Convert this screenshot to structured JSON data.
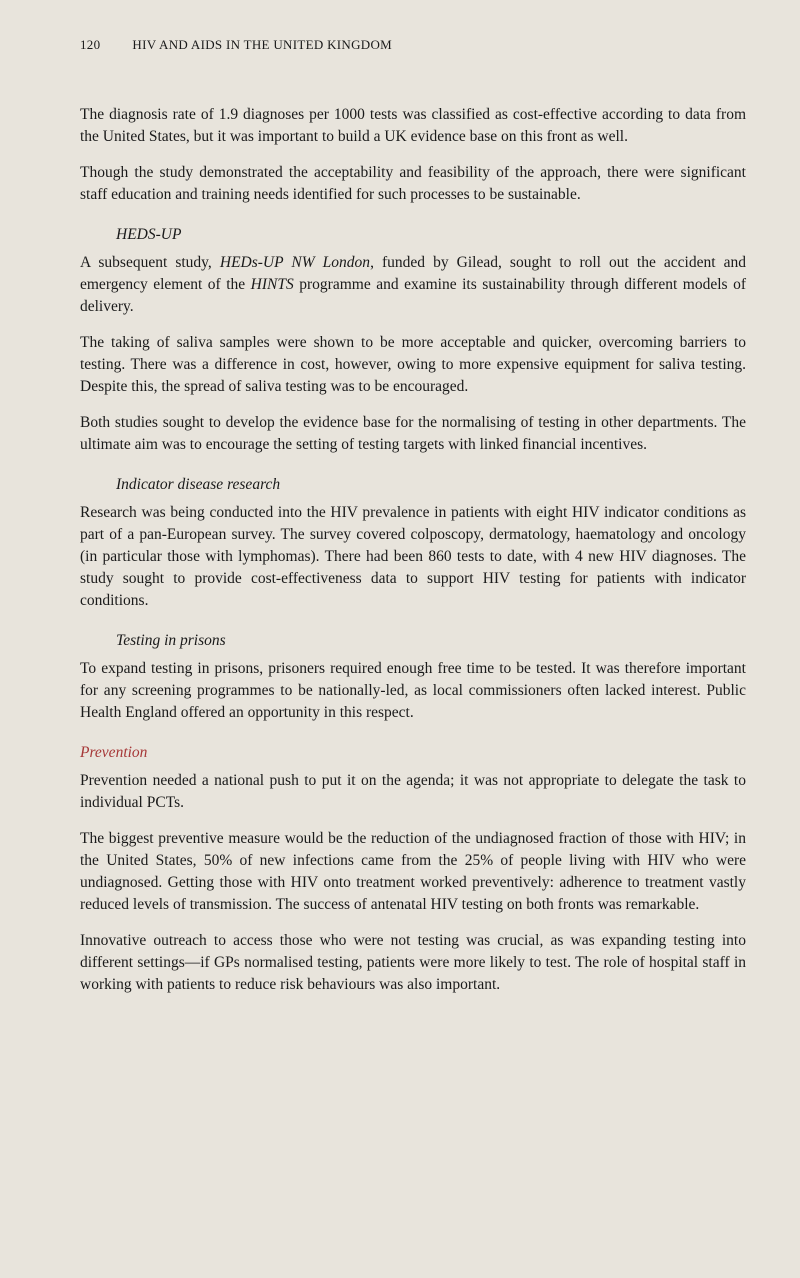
{
  "header": {
    "page_number": "120",
    "title": "HIV AND AIDS IN THE UNITED KINGDOM"
  },
  "paragraphs": {
    "p1": "The diagnosis rate of 1.9 diagnoses per 1000 tests was classified as cost-effective according to data from the United States, but it was important to build a UK evidence base on this front as well.",
    "p2": "Though the study demonstrated the acceptability and feasibility of the approach, there were significant staff education and training needs identified for such processes to be sustainable.",
    "heds_heading": "HEDS-UP",
    "p3a": "A subsequent study, ",
    "p3b": "HEDs-UP NW London",
    "p3c": ", funded by Gilead, sought to roll out the accident and emergency element of the ",
    "p3d": "HINTS",
    "p3e": " programme and examine its sustainability through different models of delivery.",
    "p4": "The taking of saliva samples were shown to be more acceptable and quicker, overcoming barriers to testing. There was a difference in cost, however, owing to more expensive equipment for saliva testing. Despite this, the spread of saliva testing was to be encouraged.",
    "p5": "Both studies sought to develop the evidence base for the normalising of testing in other departments. The ultimate aim was to encourage the setting of testing targets with linked financial incentives.",
    "indicator_heading": "Indicator disease research",
    "p6": "Research was being conducted into the HIV prevalence in patients with eight HIV indicator conditions as part of a pan-European survey. The survey covered colposcopy, dermatology, haematology and oncology (in particular those with lymphomas). There had been 860 tests to date, with 4 new HIV diagnoses. The study sought to provide cost-effectiveness data to support HIV testing for patients with indicator conditions.",
    "prisons_heading": "Testing in prisons",
    "p7": "To expand testing in prisons, prisoners required enough free time to be tested. It was therefore important for any screening programmes to be nationally-led, as local commissioners often lacked interest. Public Health England offered an opportunity in this respect.",
    "prevention_heading": "Prevention",
    "p8": "Prevention needed a national push to put it on the agenda; it was not appropriate to delegate the task to individual PCTs.",
    "p9": "The biggest preventive measure would be the reduction of the undiagnosed fraction of those with HIV; in the United States, 50% of new infections came from the 25% of people living with HIV who were undiagnosed. Getting those with HIV onto treatment worked preventively: adherence to treatment vastly reduced levels of transmission. The success of antenatal HIV testing on both fronts was remarkable.",
    "p10": "Innovative outreach to access those who were not testing was crucial, as was expanding testing into different settings—if GPs normalised testing, patients were more likely to test. The role of hospital staff in working with patients to reduce risk behaviours was also important."
  }
}
